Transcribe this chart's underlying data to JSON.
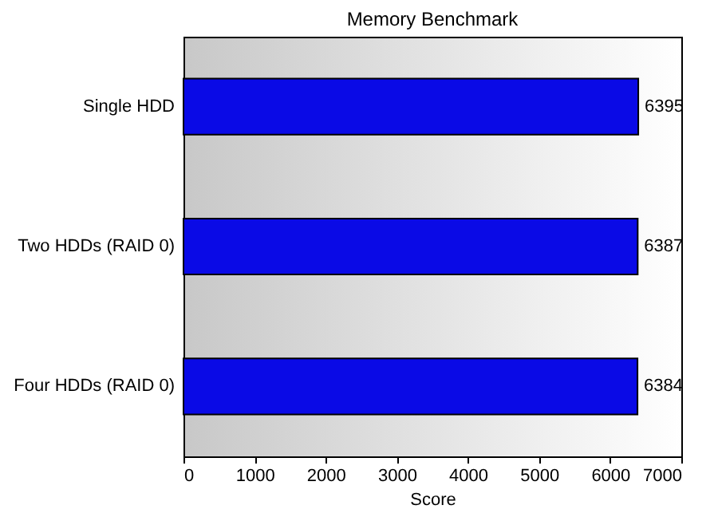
{
  "chart_data": {
    "type": "bar",
    "orientation": "horizontal",
    "title": "Memory Benchmark",
    "xlabel": "Score",
    "categories": [
      "Single HDD",
      "Two HDDs (RAID 0)",
      "Four HDDs (RAID 0)"
    ],
    "values": [
      6395,
      6387,
      6384
    ],
    "color": "#0a0ae6",
    "xlim": [
      0,
      7000
    ],
    "xticks": [
      0,
      1000,
      2000,
      3000,
      4000,
      5000,
      6000,
      7000
    ],
    "data_labels": true,
    "grid": false
  }
}
